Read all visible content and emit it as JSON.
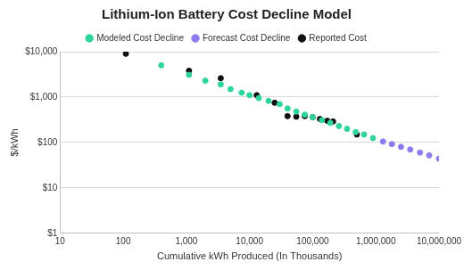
{
  "chart_data": {
    "type": "scatter",
    "title": "Lithium-Ion Battery Cost Decline Model",
    "x_label": "Cumulative kWh Produced (In Thousands)",
    "y_label": "$/kWh",
    "log": true,
    "grid": "y",
    "legend": "top",
    "marker": "circle",
    "xlim": [
      10,
      10000000
    ],
    "xticks": [
      10,
      100,
      {
        "value": 1000,
        "label": "1,000"
      },
      {
        "value": 10000,
        "label": "10,000"
      },
      {
        "value": 100000,
        "label": "100,000"
      },
      {
        "value": 1000000,
        "label": "1,000,000"
      },
      {
        "value": 10000000,
        "label": "10,000,000"
      }
    ],
    "ylim": [
      1,
      10000
    ],
    "yticks": [
      {
        "value": 1,
        "label": "$1"
      },
      {
        "value": 10,
        "label": "$10"
      },
      {
        "value": 100,
        "label": "$100"
      },
      {
        "value": 1000,
        "label": "$1,000"
      },
      {
        "value": 10000,
        "label": "$10,000"
      }
    ],
    "series": [
      {
        "name": "Modeled Cost Decline",
        "color": "#2fd69b",
        "x": [
          400,
          1100,
          2000,
          3500,
          5000,
          7500,
          10000,
          14000,
          20000,
          30000,
          40000,
          55000,
          75000,
          100000,
          140000,
          190000,
          260000,
          350000,
          480000,
          650000,
          900000
        ],
        "values": [
          5000,
          3100,
          2300,
          1900,
          1500,
          1250,
          1100,
          950,
          820,
          700,
          560,
          480,
          410,
          360,
          310,
          270,
          230,
          200,
          170,
          150,
          125
        ]
      },
      {
        "name": "Forecast Cost Decline",
        "color": "#8b7cf0",
        "x": [
          1300000,
          1800000,
          2500000,
          3500000,
          5000000,
          7000000,
          10000000
        ],
        "values": [
          105,
          92,
          80,
          70,
          60,
          52,
          44
        ]
      },
      {
        "name": "Reported Cost",
        "color": "#111111",
        "x": [
          110,
          1100,
          3500,
          13000,
          25000,
          40000,
          55000,
          75000,
          100000,
          130000,
          170000,
          210000,
          500000
        ],
        "values": [
          9000,
          3800,
          2600,
          1100,
          750,
          380,
          370,
          380,
          360,
          330,
          300,
          290,
          150
        ]
      }
    ]
  }
}
